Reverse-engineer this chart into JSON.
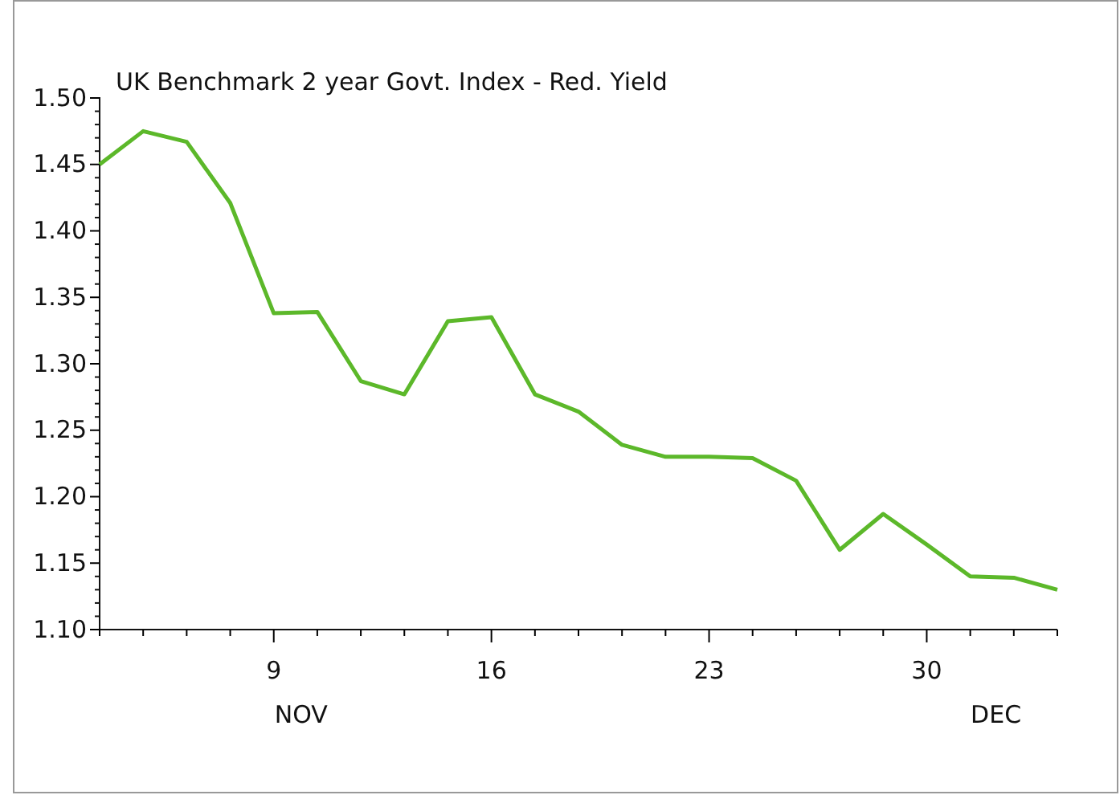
{
  "chart_data": {
    "type": "line",
    "title": "UK Benchmark 2 year Govt. Index - Red. Yield",
    "categories": [
      null,
      null,
      null,
      null,
      "9",
      null,
      null,
      null,
      null,
      "16",
      null,
      null,
      null,
      null,
      "23",
      null,
      null,
      null,
      null,
      "30",
      null,
      null,
      null
    ],
    "series": [
      {
        "color": "#5cb82a",
        "values": [
          1.45,
          1.475,
          1.467,
          1.421,
          1.338,
          1.339,
          1.287,
          1.277,
          1.332,
          1.335,
          1.277,
          1.264,
          1.239,
          1.23,
          1.23,
          1.229,
          1.212,
          1.16,
          1.187,
          1.164,
          1.14,
          1.139,
          1.13
        ]
      }
    ],
    "ylim": [
      1.1,
      1.5
    ],
    "yticks": [
      {
        "value": 1.1,
        "label": "1.10"
      },
      {
        "value": 1.15,
        "label": "1.15"
      },
      {
        "value": 1.2,
        "label": "1.20"
      },
      {
        "value": 1.25,
        "label": "1.25"
      },
      {
        "value": 1.3,
        "label": "1.30"
      },
      {
        "value": 1.35,
        "label": "1.35"
      },
      {
        "value": 1.4,
        "label": "1.40"
      },
      {
        "value": 1.45,
        "label": "1.45"
      },
      {
        "value": 1.5,
        "label": "1.50"
      }
    ],
    "annotations": [
      "NOV",
      "DEC"
    ],
    "line_style": "solid"
  }
}
